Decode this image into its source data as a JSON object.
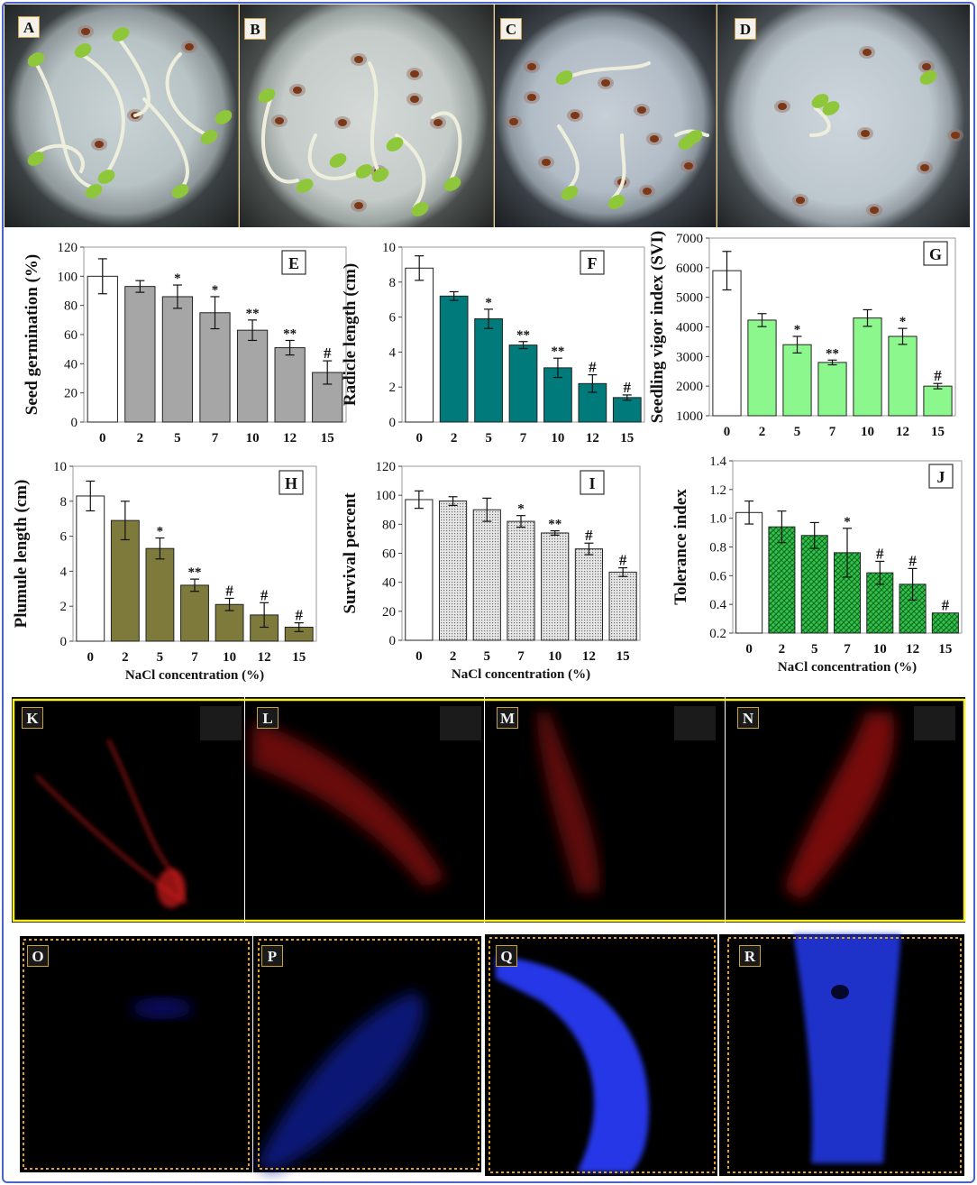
{
  "panels_top": [
    "A",
    "B",
    "C",
    "D"
  ],
  "panels_red": [
    "K",
    "L",
    "M",
    "N"
  ],
  "panels_blue": [
    "O",
    "P",
    "Q",
    "R"
  ],
  "colors": {
    "white_bar": "#ffffff",
    "grey_bar": "#a6a6a6",
    "teal_bar": "#007a7a",
    "lightgreen_bar": "#8cf78c",
    "olive_bar": "#7d7a3c",
    "dotted_bar": "#d8d8d8",
    "green_hatch": "#1fa83a",
    "frame": "#4a63c8",
    "yellow_box": "#f5f01e",
    "orange_dotted": "#e0a020",
    "red_fluor": "#d11a1a",
    "blue_fluor": "#2a3cff"
  },
  "chart_data": [
    {
      "panel": "E",
      "type": "bar",
      "ylabel": "Seed germination (%)",
      "xlabel": "",
      "categories": [
        "0",
        "2",
        "5",
        "7",
        "10",
        "12",
        "15"
      ],
      "values": [
        100,
        93,
        86,
        75,
        63,
        51,
        34
      ],
      "errors": [
        12,
        4,
        8,
        11,
        7,
        5,
        8
      ],
      "annotations": [
        "",
        "",
        "*",
        "*",
        "**",
        "**",
        "#"
      ],
      "ylim": [
        0,
        120
      ],
      "yticks": [
        0,
        20,
        40,
        60,
        80,
        100,
        120
      ],
      "fill": "grey"
    },
    {
      "panel": "F",
      "type": "bar",
      "ylabel": "Radicle length (cm)",
      "xlabel": "",
      "categories": [
        "0",
        "2",
        "5",
        "7",
        "10",
        "12",
        "15"
      ],
      "values": [
        8.8,
        7.2,
        5.9,
        4.4,
        3.1,
        2.2,
        1.4
      ],
      "errors": [
        0.7,
        0.25,
        0.55,
        0.2,
        0.55,
        0.5,
        0.15
      ],
      "annotations": [
        "",
        "",
        "*",
        "**",
        "**",
        "#",
        "#"
      ],
      "ylim": [
        0,
        10
      ],
      "yticks": [
        0,
        2,
        4,
        6,
        8,
        10
      ],
      "fill": "teal"
    },
    {
      "panel": "G",
      "type": "bar",
      "ylabel": "Seedling vigor index (SVI)",
      "xlabel": "",
      "categories": [
        "0",
        "2",
        "5",
        "7",
        "10",
        "12",
        "15"
      ],
      "values": [
        5900,
        4230,
        3400,
        2800,
        4300,
        3680,
        2000
      ],
      "errors": [
        650,
        220,
        280,
        80,
        280,
        270,
        90
      ],
      "annotations": [
        "",
        "",
        "*",
        "**",
        "",
        "*",
        "#"
      ],
      "ylim": [
        1000,
        7000
      ],
      "yticks": [
        1000,
        2000,
        3000,
        4000,
        5000,
        6000,
        7000
      ],
      "fill": "lightgreen"
    },
    {
      "panel": "H",
      "type": "bar",
      "ylabel": "Plumule length (cm)",
      "xlabel": "NaCl concentration (%)",
      "categories": [
        "0",
        "2",
        "5",
        "7",
        "10",
        "12",
        "15"
      ],
      "values": [
        8.3,
        6.9,
        5.3,
        3.2,
        2.1,
        1.5,
        0.8
      ],
      "errors": [
        0.85,
        1.1,
        0.6,
        0.35,
        0.35,
        0.7,
        0.25
      ],
      "annotations": [
        "",
        "",
        "*",
        "**",
        "#",
        "#",
        "#"
      ],
      "ylim": [
        0,
        10
      ],
      "yticks": [
        0,
        2,
        4,
        6,
        8,
        10
      ],
      "fill": "olive"
    },
    {
      "panel": "I",
      "type": "bar",
      "ylabel": "Survival percent",
      "xlabel": "NaCl concentration (%)",
      "categories": [
        "0",
        "2",
        "5",
        "7",
        "10",
        "12",
        "15"
      ],
      "values": [
        97,
        96,
        90,
        82,
        74,
        63,
        47
      ],
      "errors": [
        6,
        3,
        8,
        4,
        1.5,
        4,
        3
      ],
      "annotations": [
        "",
        "",
        "",
        "*",
        "**",
        "#",
        "#"
      ],
      "ylim": [
        0,
        120
      ],
      "yticks": [
        0,
        20,
        40,
        60,
        80,
        100,
        120
      ],
      "fill": "dotted"
    },
    {
      "panel": "J",
      "type": "bar",
      "ylabel": "Tolerance index",
      "xlabel": "NaCl concentration (%)",
      "categories": [
        "0",
        "2",
        "5",
        "7",
        "10",
        "12",
        "15"
      ],
      "values": [
        1.04,
        0.94,
        0.88,
        0.76,
        0.62,
        0.54,
        0.34
      ],
      "errors": [
        0.08,
        0.11,
        0.09,
        0.17,
        0.08,
        0.11,
        0
      ],
      "annotations": [
        "",
        "",
        "",
        "*",
        "#",
        "#",
        "#"
      ],
      "ylim": [
        0.2,
        1.4
      ],
      "yticks": [
        0.2,
        0.4,
        0.6,
        0.8,
        1.0,
        1.2,
        1.4
      ],
      "fill": "greenhatch"
    }
  ]
}
